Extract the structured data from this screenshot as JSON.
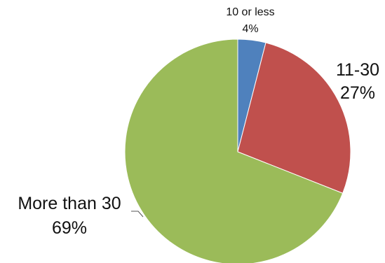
{
  "chart_data": {
    "type": "pie",
    "title": "",
    "slices": [
      {
        "label": "10 or less",
        "pct_label": "4%",
        "value": 4,
        "color": "#4f81bd"
      },
      {
        "label": "11-30",
        "pct_label": "27%",
        "value": 27,
        "color": "#c0504d"
      },
      {
        "label": "More than 30",
        "pct_label": "69%",
        "value": 69,
        "color": "#9bbb59"
      }
    ],
    "start_angle_deg": 0,
    "direction": "clockwise",
    "legend": "none"
  }
}
